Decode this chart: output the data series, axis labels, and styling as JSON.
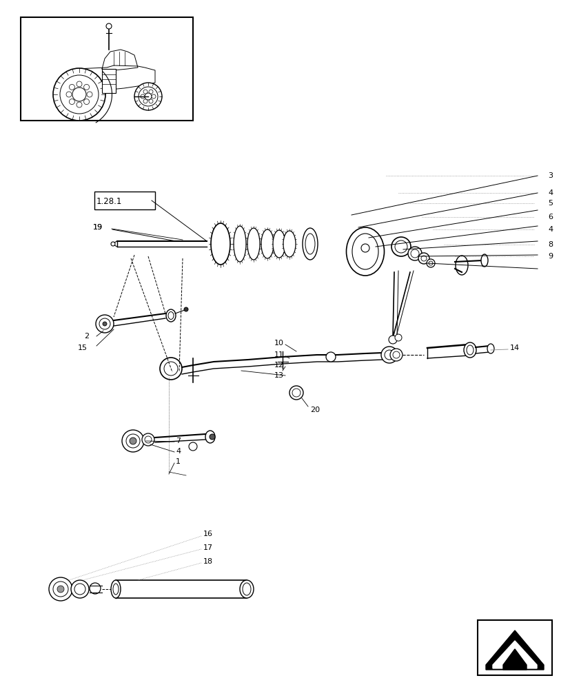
{
  "bg_color": "#ffffff",
  "line_color": "#000000",
  "gray_color": "#888888",
  "fig_width": 8.28,
  "fig_height": 10.0
}
